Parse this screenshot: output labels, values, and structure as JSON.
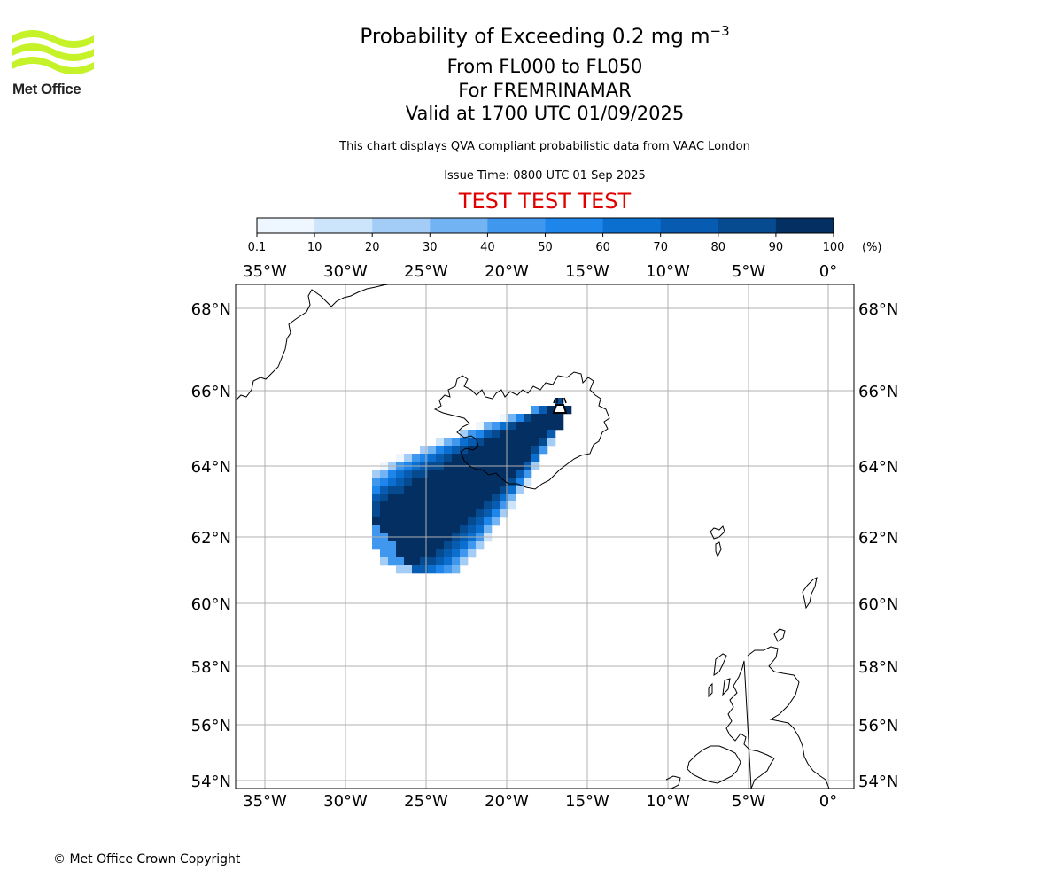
{
  "header": {
    "title": "Probability of Exceeding 0.2 mg m",
    "title_sup": "−3",
    "levels": "From FL000 to FL050",
    "region": "For FREMRINAMAR",
    "valid": "Valid at 1700 UTC 01/09/2025",
    "note": "This chart displays QVA compliant probabilistic data from VAAC London",
    "issue_time": "Issue Time: 0800 UTC 01 Sep 2025",
    "test_banner": "TEST TEST TEST"
  },
  "logo": {
    "text": "Met Office",
    "wave_color": "#c6f22a"
  },
  "colorbar": {
    "tick_labels": [
      "0.1",
      "10",
      "20",
      "30",
      "40",
      "50",
      "60",
      "70",
      "80",
      "90",
      "100"
    ],
    "unit_label": "(%)",
    "colors": [
      "#eef6ff",
      "#cde5fb",
      "#a3cdf7",
      "#72b3f3",
      "#3f98ee",
      "#1e86ea",
      "#0b6fd0",
      "#075bb0",
      "#064a90",
      "#042f63"
    ]
  },
  "map": {
    "lon_labels": [
      "35°W",
      "30°W",
      "25°W",
      "20°W",
      "15°W",
      "10°W",
      "5°W",
      "0°"
    ],
    "lat_labels": [
      "68°N",
      "66°N",
      "64°N",
      "62°N",
      "60°N",
      "58°N",
      "56°N",
      "54°N"
    ],
    "grid_color": "#b0b0b0",
    "volcano_marker": "volcano-icon"
  },
  "footer": {
    "copyright": "© Met Office Crown Copyright"
  }
}
